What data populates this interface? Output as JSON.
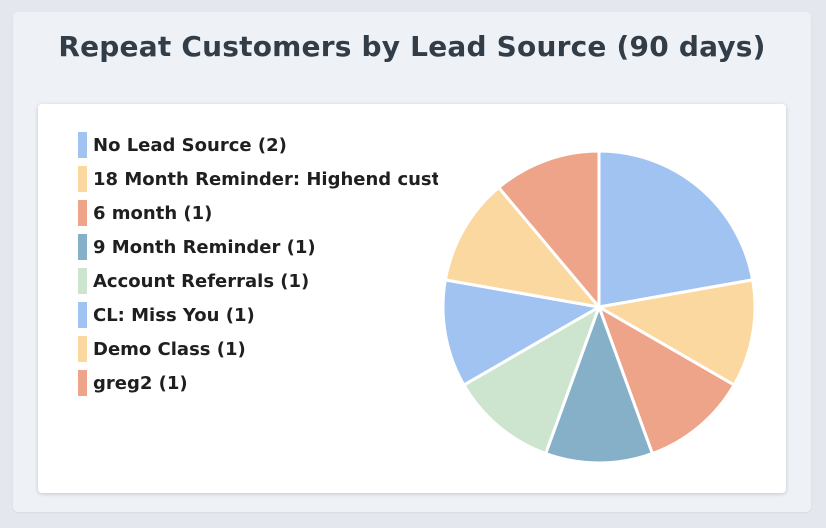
{
  "title": "Repeat Customers by Lead Source (90 days)",
  "colors": {
    "blue": "#a1c3f2",
    "peach": "#fbd89f",
    "salmon": "#eea488",
    "teal": "#86b0c8",
    "green": "#cde5ce"
  },
  "chart_data": {
    "type": "pie",
    "title": "Repeat Customers by Lead Source (90 days)",
    "legend_position": "left",
    "slices": [
      {
        "label": "No Lead Source (2)",
        "value": 2,
        "color": "#a1c3f2"
      },
      {
        "label": "18 Month Reminder: Highend cust",
        "value": 1,
        "color": "#fbd89f"
      },
      {
        "label": "6 month (1)",
        "value": 1,
        "color": "#eea488"
      },
      {
        "label": "9 Month Reminder (1)",
        "value": 1,
        "color": "#86b0c8"
      },
      {
        "label": "Account Referrals (1)",
        "value": 1,
        "color": "#cde5ce"
      },
      {
        "label": "CL: Miss You (1)",
        "value": 1,
        "color": "#a1c3f2"
      },
      {
        "label": "Demo Class (1)",
        "value": 1,
        "color": "#fbd89f"
      },
      {
        "label": "greg2 (1)",
        "value": 1,
        "color": "#eea488"
      }
    ]
  }
}
